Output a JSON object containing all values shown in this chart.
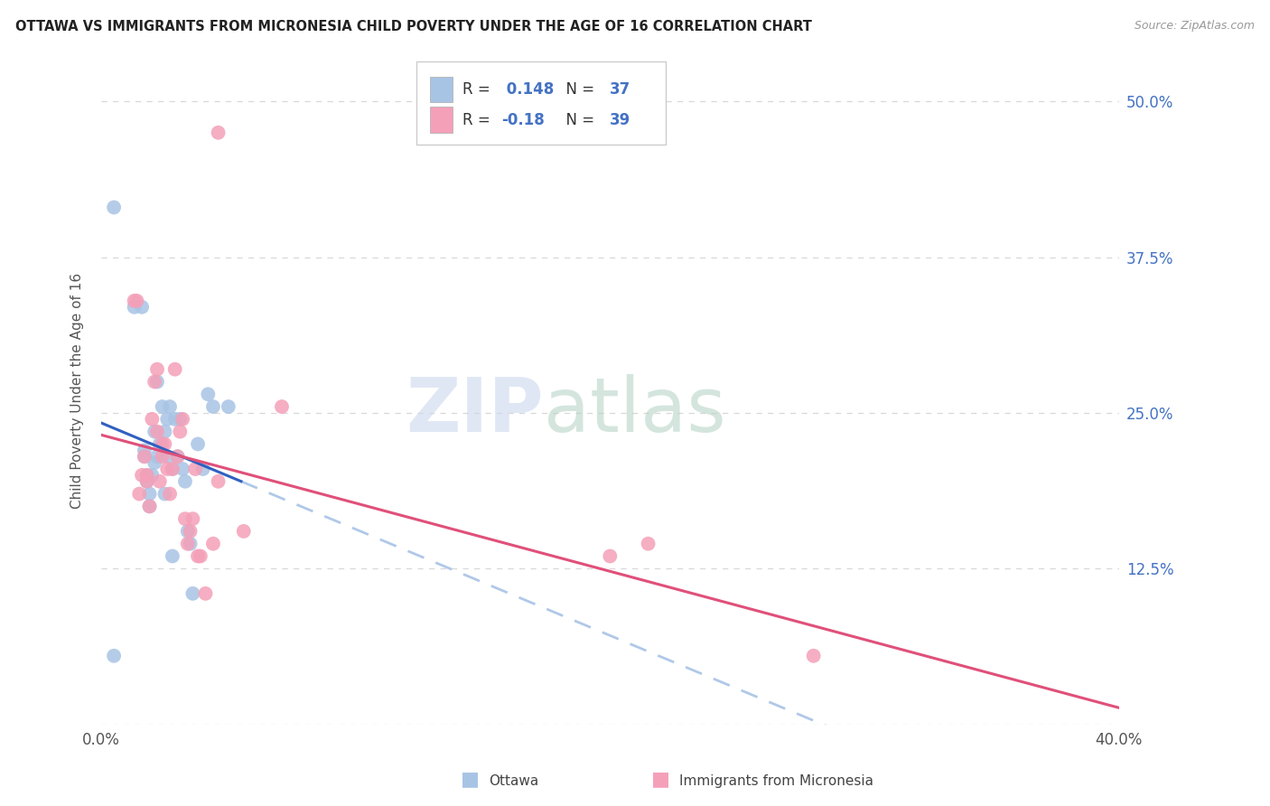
{
  "title": "OTTAWA VS IMMIGRANTS FROM MICRONESIA CHILD POVERTY UNDER THE AGE OF 16 CORRELATION CHART",
  "source": "Source: ZipAtlas.com",
  "ylabel": "Child Poverty Under the Age of 16",
  "r_ottawa": 0.148,
  "n_ottawa": 37,
  "r_micronesia": -0.18,
  "n_micronesia": 39,
  "ottawa_color": "#a8c4e5",
  "micronesia_color": "#f4a0b8",
  "trend_ottawa_solid_color": "#3060c0",
  "trend_ottawa_dashed_color": "#b0c8e8",
  "trend_micronesia_color": "#e0507a",
  "background_color": "#ffffff",
  "grid_color": "#d8d8d8",
  "ottawa_x": [
    0.005,
    0.013,
    0.016,
    0.017,
    0.017,
    0.018,
    0.018,
    0.019,
    0.019,
    0.02,
    0.021,
    0.021,
    0.022,
    0.022,
    0.023,
    0.024,
    0.025,
    0.025,
    0.026,
    0.026,
    0.027,
    0.028,
    0.028,
    0.029,
    0.03,
    0.031,
    0.032,
    0.033,
    0.034,
    0.035,
    0.036,
    0.038,
    0.04,
    0.042,
    0.044,
    0.05,
    0.005
  ],
  "ottawa_y": [
    0.415,
    0.335,
    0.335,
    0.22,
    0.215,
    0.2,
    0.195,
    0.185,
    0.175,
    0.2,
    0.21,
    0.235,
    0.275,
    0.215,
    0.225,
    0.255,
    0.235,
    0.185,
    0.215,
    0.245,
    0.255,
    0.205,
    0.135,
    0.245,
    0.215,
    0.245,
    0.205,
    0.195,
    0.155,
    0.145,
    0.105,
    0.225,
    0.205,
    0.265,
    0.255,
    0.255,
    0.055
  ],
  "micronesia_x": [
    0.013,
    0.014,
    0.015,
    0.016,
    0.017,
    0.018,
    0.018,
    0.019,
    0.02,
    0.021,
    0.022,
    0.022,
    0.023,
    0.024,
    0.024,
    0.025,
    0.026,
    0.027,
    0.028,
    0.029,
    0.03,
    0.031,
    0.032,
    0.033,
    0.034,
    0.035,
    0.036,
    0.037,
    0.038,
    0.039,
    0.041,
    0.044,
    0.046,
    0.056,
    0.071,
    0.2,
    0.215,
    0.28,
    0.046
  ],
  "micronesia_y": [
    0.34,
    0.34,
    0.185,
    0.2,
    0.215,
    0.195,
    0.2,
    0.175,
    0.245,
    0.275,
    0.285,
    0.235,
    0.195,
    0.225,
    0.215,
    0.225,
    0.205,
    0.185,
    0.205,
    0.285,
    0.215,
    0.235,
    0.245,
    0.165,
    0.145,
    0.155,
    0.165,
    0.205,
    0.135,
    0.135,
    0.105,
    0.145,
    0.475,
    0.155,
    0.255,
    0.135,
    0.145,
    0.055,
    0.195
  ],
  "xlim": [
    0.0,
    0.4
  ],
  "ylim": [
    0.0,
    0.535
  ],
  "ytick_vals": [
    0.0,
    0.125,
    0.25,
    0.375,
    0.5
  ],
  "ytick_labels": [
    "",
    "12.5%",
    "25.0%",
    "37.5%",
    "50.0%"
  ],
  "xtick_vals": [
    0.0,
    0.1,
    0.2,
    0.3,
    0.4
  ],
  "xtick_labels": [
    "0.0%",
    "",
    "",
    "",
    "40.0%"
  ],
  "solid_trend_xmax": 0.055,
  "watermark_zip_color": "#ccd8ee",
  "watermark_atlas_color": "#b8d4c8"
}
